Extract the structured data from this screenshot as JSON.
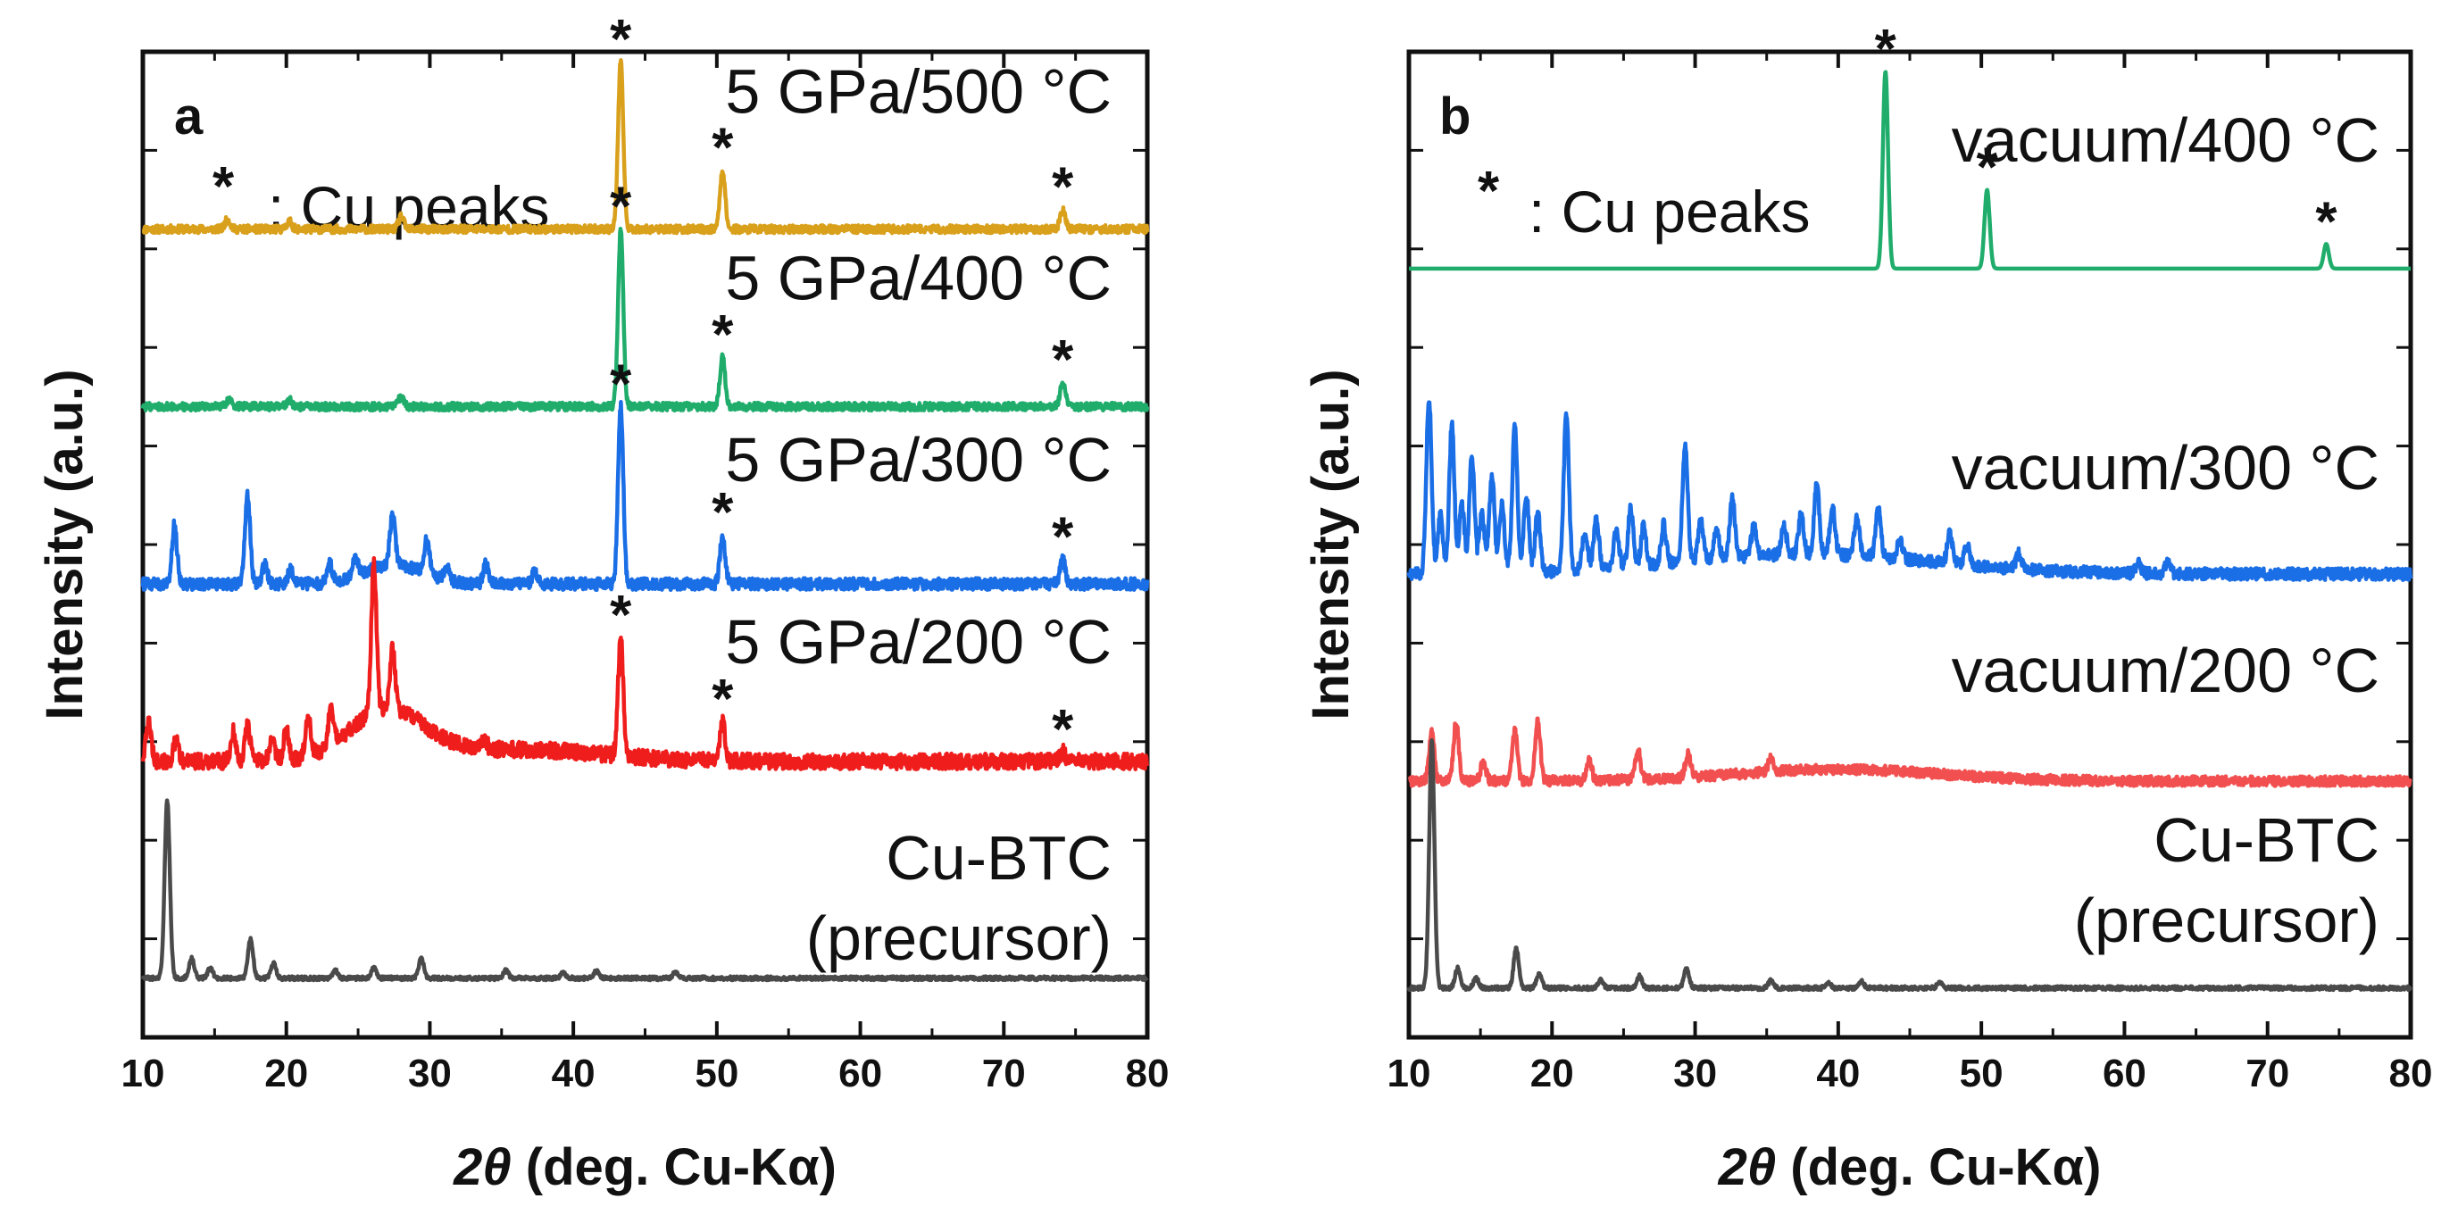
{
  "colors": {
    "gold": "#d9a01c",
    "green": "#20ad6c",
    "blue": "#1a6ee6",
    "red": "#f01d1d",
    "light_red": "#f25050",
    "gray": "#4a4a4a"
  },
  "chart_data": [
    {
      "type": "line",
      "panel_letter": "a",
      "xlabel_italic": "2θ",
      "xlabel_rest": " (deg. Cu-Kα)",
      "ylabel": "Intensity (a.u.)",
      "xlim": [
        10,
        80
      ],
      "xticks": [
        10,
        20,
        30,
        40,
        50,
        60,
        70,
        80
      ],
      "annotation": {
        "star": "*",
        "text": ": Cu peaks"
      },
      "series": [
        {
          "name": "5 GPa/500 °C",
          "color": "gold",
          "baseline": 0.82,
          "noise": 0.004,
          "peaks": [
            [
              15.9,
              0.01
            ],
            [
              20.2,
              0.008
            ],
            [
              28.0,
              0.013
            ],
            [
              43.3,
              0.17
            ],
            [
              50.4,
              0.06
            ],
            [
              74.1,
              0.02
            ]
          ],
          "humps": [],
          "stars": [
            [
              43.3,
              "*"
            ],
            [
              50.4,
              "*"
            ],
            [
              74.1,
              "*"
            ]
          ]
        },
        {
          "name": "5 GPa/400 °C",
          "color": "green",
          "baseline": 0.64,
          "noise": 0.004,
          "peaks": [
            [
              16.0,
              0.007
            ],
            [
              20.2,
              0.007
            ],
            [
              28.0,
              0.01
            ],
            [
              43.3,
              0.18
            ],
            [
              50.4,
              0.05
            ],
            [
              74.1,
              0.025
            ]
          ],
          "humps": [],
          "stars": [
            [
              43.3,
              "*"
            ],
            [
              50.4,
              "*"
            ],
            [
              74.1,
              "*"
            ]
          ]
        },
        {
          "name": "5 GPa/300 °C",
          "color": "blue",
          "baseline": 0.46,
          "noise": 0.006,
          "peaks": [
            [
              12.2,
              0.06
            ],
            [
              17.3,
              0.09
            ],
            [
              18.5,
              0.02
            ],
            [
              20.3,
              0.015
            ],
            [
              23.0,
              0.02
            ],
            [
              24.8,
              0.02
            ],
            [
              27.4,
              0.05
            ],
            [
              29.8,
              0.035
            ],
            [
              31.2,
              0.015
            ],
            [
              33.9,
              0.02
            ],
            [
              37.3,
              0.012
            ],
            [
              43.3,
              0.18
            ],
            [
              50.4,
              0.05
            ],
            [
              74.1,
              0.025
            ]
          ],
          "humps": [
            [
              27.5,
              2.0,
              0.02
            ]
          ],
          "stars": [
            [
              43.3,
              "*"
            ],
            [
              50.4,
              "*"
            ],
            [
              74.1,
              "*"
            ]
          ]
        },
        {
          "name": "5 GPa/200 °C",
          "color": "red",
          "baseline": 0.28,
          "noise": 0.008,
          "peaks": [
            [
              10.4,
              0.04
            ],
            [
              12.3,
              0.02
            ],
            [
              16.3,
              0.03
            ],
            [
              17.3,
              0.035
            ],
            [
              19.0,
              0.025
            ],
            [
              20.0,
              0.03
            ],
            [
              21.5,
              0.04
            ],
            [
              23.1,
              0.035
            ],
            [
              26.1,
              0.15
            ],
            [
              27.4,
              0.06
            ],
            [
              33.8,
              0.01
            ],
            [
              43.3,
              0.12
            ],
            [
              50.4,
              0.04
            ],
            [
              74.1,
              0.01
            ]
          ],
          "humps": [
            [
              27.0,
              2.6,
              0.05
            ],
            [
              36.0,
              6.0,
              0.012
            ]
          ],
          "stars": [
            [
              43.3,
              "*"
            ],
            [
              50.4,
              "*"
            ],
            [
              74.1,
              "*"
            ]
          ]
        },
        {
          "name": "Cu-BTC",
          "name2": "(precursor)",
          "color": "gray",
          "baseline": 0.06,
          "noise": 0.002,
          "peaks": [
            [
              11.7,
              0.18
            ],
            [
              13.4,
              0.02
            ],
            [
              14.7,
              0.01
            ],
            [
              17.5,
              0.04
            ],
            [
              19.1,
              0.015
            ],
            [
              23.4,
              0.008
            ],
            [
              26.1,
              0.01
            ],
            [
              29.4,
              0.02
            ],
            [
              35.3,
              0.008
            ],
            [
              39.3,
              0.006
            ],
            [
              41.6,
              0.007
            ],
            [
              47.1,
              0.006
            ]
          ],
          "humps": [],
          "stars": []
        }
      ]
    },
    {
      "type": "line",
      "panel_letter": "b",
      "xlabel_italic": "2θ",
      "xlabel_rest": " (deg. Cu-Kα)",
      "ylabel": "Intensity (a.u.)",
      "xlim": [
        10,
        80
      ],
      "xticks": [
        10,
        20,
        30,
        40,
        50,
        60,
        70,
        80
      ],
      "annotation": {
        "star": "*",
        "text": ": Cu peaks"
      },
      "series": [
        {
          "name": "vacuum/400 °C",
          "color": "green",
          "baseline": 0.78,
          "noise": 0.0,
          "peaks": [
            [
              43.3,
              0.2
            ],
            [
              50.4,
              0.08
            ],
            [
              74.1,
              0.025
            ]
          ],
          "humps": [],
          "stars": [
            [
              43.3,
              "*"
            ],
            [
              50.4,
              "*"
            ],
            [
              74.1,
              "*"
            ]
          ]
        },
        {
          "name": "vacuum/300 °C",
          "color": "blue",
          "baseline": 0.47,
          "noise": 0.006,
          "peaks": [
            [
              11.4,
              0.18
            ],
            [
              12.2,
              0.06
            ],
            [
              13.0,
              0.15
            ],
            [
              13.7,
              0.07
            ],
            [
              14.4,
              0.12
            ],
            [
              15.1,
              0.06
            ],
            [
              15.8,
              0.1
            ],
            [
              16.5,
              0.07
            ],
            [
              17.4,
              0.15
            ],
            [
              18.2,
              0.08
            ],
            [
              19.0,
              0.06
            ],
            [
              21.0,
              0.16
            ],
            [
              22.3,
              0.04
            ],
            [
              23.1,
              0.05
            ],
            [
              24.5,
              0.04
            ],
            [
              25.5,
              0.06
            ],
            [
              26.4,
              0.04
            ],
            [
              27.8,
              0.04
            ],
            [
              29.3,
              0.12
            ],
            [
              30.4,
              0.04
            ],
            [
              31.5,
              0.03
            ],
            [
              32.6,
              0.06
            ],
            [
              34.1,
              0.03
            ],
            [
              36.2,
              0.03
            ],
            [
              37.4,
              0.04
            ],
            [
              38.5,
              0.07
            ],
            [
              39.6,
              0.05
            ],
            [
              41.3,
              0.04
            ],
            [
              42.8,
              0.05
            ],
            [
              44.3,
              0.02
            ],
            [
              47.8,
              0.03
            ],
            [
              49.0,
              0.02
            ],
            [
              52.6,
              0.015
            ],
            [
              61.0,
              0.01
            ],
            [
              63.0,
              0.01
            ]
          ],
          "humps": [
            [
              38.0,
              9.0,
              0.02
            ]
          ],
          "stars": []
        },
        {
          "name": "vacuum/200 °C",
          "color": "light_red",
          "baseline": 0.26,
          "noise": 0.005,
          "peaks": [
            [
              11.6,
              0.05
            ],
            [
              13.3,
              0.06
            ],
            [
              15.2,
              0.02
            ],
            [
              17.4,
              0.05
            ],
            [
              19.0,
              0.06
            ],
            [
              22.6,
              0.02
            ],
            [
              26.0,
              0.03
            ],
            [
              29.5,
              0.025
            ],
            [
              35.3,
              0.015
            ]
          ],
          "humps": [
            [
              40.0,
              7.0,
              0.012
            ]
          ],
          "stars": []
        },
        {
          "name": "Cu-BTC",
          "name2": "(precursor)",
          "color": "gray",
          "baseline": 0.05,
          "noise": 0.002,
          "peaks": [
            [
              11.6,
              0.25
            ],
            [
              13.4,
              0.02
            ],
            [
              14.7,
              0.01
            ],
            [
              17.5,
              0.04
            ],
            [
              19.1,
              0.015
            ],
            [
              23.4,
              0.008
            ],
            [
              26.1,
              0.012
            ],
            [
              29.4,
              0.02
            ],
            [
              35.3,
              0.008
            ],
            [
              39.3,
              0.006
            ],
            [
              41.6,
              0.007
            ],
            [
              47.1,
              0.006
            ]
          ],
          "humps": [],
          "stars": []
        }
      ]
    }
  ]
}
